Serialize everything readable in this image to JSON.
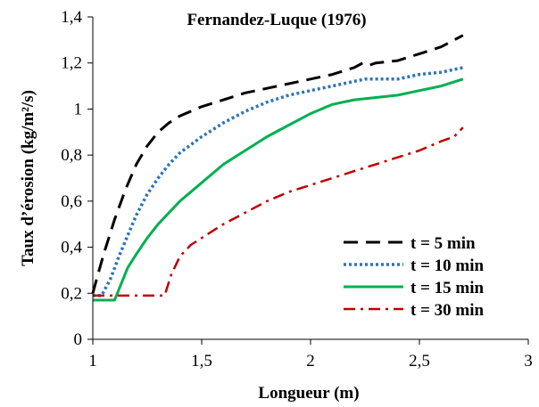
{
  "chart_data": {
    "type": "line",
    "title": "Fernandez-Luque (1976)",
    "xlabel": "Longueur (m)",
    "ylabel": "Taux d’érosion (kg/m²/s)",
    "xlim": [
      1,
      3
    ],
    "ylim": [
      0,
      1.4
    ],
    "x_ticks": [
      "1",
      "1,5",
      "2",
      "2,5",
      "3"
    ],
    "y_ticks": [
      "0",
      "0,2",
      "0,4",
      "0,6",
      "0,8",
      "1",
      "1,2",
      "1,4"
    ],
    "grid": false,
    "legend_position": "bottom-right",
    "series": [
      {
        "name": "t = 5 min",
        "color": "#000000",
        "dash": "long-dash",
        "points": [
          [
            1.0,
            0.2
          ],
          [
            1.02,
            0.27
          ],
          [
            1.05,
            0.37
          ],
          [
            1.1,
            0.52
          ],
          [
            1.15,
            0.65
          ],
          [
            1.2,
            0.76
          ],
          [
            1.25,
            0.84
          ],
          [
            1.3,
            0.9
          ],
          [
            1.35,
            0.94
          ],
          [
            1.4,
            0.97
          ],
          [
            1.5,
            1.01
          ],
          [
            1.6,
            1.04
          ],
          [
            1.7,
            1.07
          ],
          [
            1.8,
            1.09
          ],
          [
            1.9,
            1.11
          ],
          [
            2.0,
            1.13
          ],
          [
            2.1,
            1.15
          ],
          [
            2.2,
            1.18
          ],
          [
            2.24,
            1.2
          ],
          [
            2.27,
            1.19
          ],
          [
            2.3,
            1.2
          ],
          [
            2.4,
            1.21
          ],
          [
            2.5,
            1.24
          ],
          [
            2.6,
            1.27
          ],
          [
            2.7,
            1.32
          ]
        ]
      },
      {
        "name": "t = 10 min",
        "color": "#2e75b6",
        "dash": "dotted",
        "points": [
          [
            1.0,
            0.19
          ],
          [
            1.04,
            0.19
          ],
          [
            1.08,
            0.26
          ],
          [
            1.12,
            0.36
          ],
          [
            1.16,
            0.45
          ],
          [
            1.2,
            0.54
          ],
          [
            1.25,
            0.63
          ],
          [
            1.3,
            0.7
          ],
          [
            1.35,
            0.76
          ],
          [
            1.4,
            0.81
          ],
          [
            1.5,
            0.88
          ],
          [
            1.6,
            0.94
          ],
          [
            1.7,
            0.99
          ],
          [
            1.8,
            1.03
          ],
          [
            1.9,
            1.06
          ],
          [
            2.0,
            1.08
          ],
          [
            2.1,
            1.1
          ],
          [
            2.2,
            1.12
          ],
          [
            2.25,
            1.13
          ],
          [
            2.3,
            1.13
          ],
          [
            2.4,
            1.13
          ],
          [
            2.5,
            1.15
          ],
          [
            2.6,
            1.16
          ],
          [
            2.7,
            1.18
          ]
        ]
      },
      {
        "name": "t = 15 min",
        "color": "#00b050",
        "dash": "solid",
        "points": [
          [
            1.0,
            0.17
          ],
          [
            1.06,
            0.17
          ],
          [
            1.1,
            0.17
          ],
          [
            1.13,
            0.24
          ],
          [
            1.16,
            0.31
          ],
          [
            1.2,
            0.37
          ],
          [
            1.25,
            0.44
          ],
          [
            1.3,
            0.5
          ],
          [
            1.4,
            0.6
          ],
          [
            1.5,
            0.68
          ],
          [
            1.6,
            0.76
          ],
          [
            1.7,
            0.82
          ],
          [
            1.8,
            0.88
          ],
          [
            1.9,
            0.93
          ],
          [
            2.0,
            0.98
          ],
          [
            2.1,
            1.02
          ],
          [
            2.2,
            1.04
          ],
          [
            2.3,
            1.05
          ],
          [
            2.4,
            1.06
          ],
          [
            2.5,
            1.08
          ],
          [
            2.6,
            1.1
          ],
          [
            2.7,
            1.13
          ]
        ]
      },
      {
        "name": "t = 30 min",
        "color": "#c00000",
        "dash": "dash-dot",
        "points": [
          [
            1.0,
            0.19
          ],
          [
            1.1,
            0.19
          ],
          [
            1.2,
            0.19
          ],
          [
            1.33,
            0.19
          ],
          [
            1.36,
            0.28
          ],
          [
            1.4,
            0.36
          ],
          [
            1.45,
            0.41
          ],
          [
            1.5,
            0.44
          ],
          [
            1.6,
            0.5
          ],
          [
            1.7,
            0.55
          ],
          [
            1.8,
            0.6
          ],
          [
            1.9,
            0.64
          ],
          [
            2.0,
            0.67
          ],
          [
            2.1,
            0.7
          ],
          [
            2.2,
            0.73
          ],
          [
            2.3,
            0.76
          ],
          [
            2.4,
            0.79
          ],
          [
            2.5,
            0.82
          ],
          [
            2.6,
            0.86
          ],
          [
            2.66,
            0.88
          ],
          [
            2.7,
            0.92
          ]
        ]
      }
    ]
  }
}
